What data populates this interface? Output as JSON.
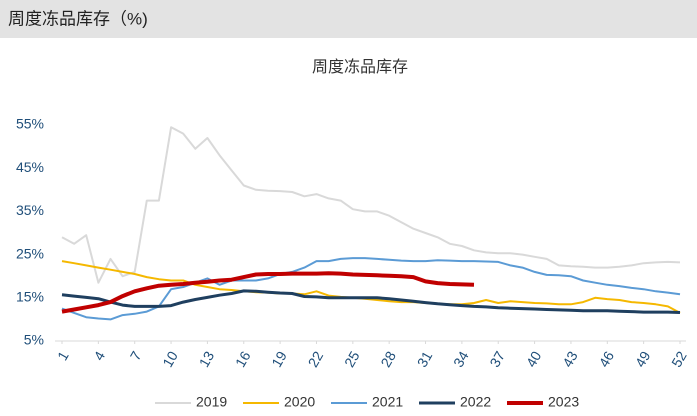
{
  "header": {
    "title": "周度冻品库存（%)"
  },
  "chart_data": {
    "type": "line",
    "title": "周度冻品库存",
    "x": [
      1,
      2,
      3,
      4,
      5,
      6,
      7,
      8,
      9,
      10,
      11,
      12,
      13,
      14,
      15,
      16,
      17,
      18,
      19,
      20,
      21,
      22,
      23,
      24,
      25,
      26,
      27,
      28,
      29,
      30,
      31,
      32,
      33,
      34,
      35,
      36,
      37,
      38,
      39,
      40,
      41,
      42,
      43,
      44,
      45,
      46,
      47,
      48,
      49,
      50,
      51,
      52
    ],
    "xlim": [
      1,
      52
    ],
    "xticks": [
      1,
      4,
      7,
      10,
      13,
      16,
      19,
      22,
      25,
      28,
      31,
      34,
      37,
      40,
      43,
      46,
      49,
      52
    ],
    "ylim": [
      5,
      55
    ],
    "yticks": [
      {
        "value": 5,
        "label": "5%"
      },
      {
        "value": 15,
        "label": "15%"
      },
      {
        "value": 25,
        "label": "25%"
      },
      {
        "value": 35,
        "label": "35%"
      },
      {
        "value": 45,
        "label": "45%"
      },
      {
        "value": 55,
        "label": "55%"
      }
    ],
    "legend": "bottom",
    "series": [
      {
        "name": "2019",
        "color": "#d9d9d9",
        "width": 2,
        "values": [
          29,
          27.5,
          29.5,
          18.5,
          24,
          20,
          21,
          37.5,
          37.5,
          54.5,
          53,
          49.5,
          52,
          48,
          44.5,
          41,
          40,
          39.8,
          39.7,
          39.5,
          38.5,
          39,
          38,
          37.5,
          35.5,
          35,
          35,
          34,
          32.5,
          31,
          30,
          29,
          27.5,
          27,
          26,
          25.5,
          25.3,
          25.3,
          25,
          24.5,
          24,
          22.5,
          22.3,
          22.2,
          22,
          22,
          22.2,
          22.5,
          23,
          23.2,
          23.3,
          23.2
        ]
      },
      {
        "name": "2020",
        "color": "#f5b800",
        "width": 2,
        "values": [
          23.5,
          23,
          22.5,
          22,
          21.5,
          21,
          20.5,
          19.8,
          19.3,
          19,
          19,
          18,
          17.5,
          17,
          16.8,
          16.5,
          16.3,
          16.2,
          16,
          16,
          15.8,
          16.5,
          15.5,
          15.2,
          15,
          14.8,
          14.5,
          14.2,
          14,
          14,
          13.8,
          13.6,
          13.5,
          13.5,
          13.8,
          14.5,
          13.8,
          14.2,
          14,
          13.8,
          13.7,
          13.5,
          13.5,
          14,
          15,
          14.7,
          14.5,
          14,
          13.8,
          13.5,
          13,
          11.5
        ]
      },
      {
        "name": "2021",
        "color": "#5b9bd5",
        "width": 2,
        "values": [
          12.5,
          11.5,
          10.5,
          10.2,
          10,
          11,
          11.3,
          11.8,
          13,
          17,
          17.5,
          18.5,
          19.5,
          18,
          19,
          19,
          19,
          19.5,
          20.5,
          21,
          22,
          23.5,
          23.5,
          24,
          24.2,
          24.2,
          24,
          23.8,
          23.6,
          23.5,
          23.5,
          23.7,
          23.6,
          23.5,
          23.5,
          23.4,
          23.3,
          22.5,
          22,
          21,
          20.3,
          20.2,
          20,
          19,
          18.5,
          18,
          17.7,
          17.3,
          17,
          16.5,
          16.2,
          15.8
        ]
      },
      {
        "name": "2022",
        "color": "#1f3f5f",
        "width": 3,
        "values": [
          15.7,
          15.4,
          15.1,
          14.8,
          14,
          13.3,
          13,
          13,
          13,
          13.2,
          14,
          14.6,
          15.1,
          15.6,
          16,
          16.6,
          16.5,
          16.3,
          16.1,
          16,
          15.3,
          15.2,
          15,
          15,
          15,
          15,
          15,
          14.8,
          14.5,
          14.2,
          13.9,
          13.6,
          13.4,
          13.2,
          13,
          12.9,
          12.7,
          12.6,
          12.5,
          12.4,
          12.3,
          12.2,
          12.1,
          12,
          12,
          12,
          11.9,
          11.8,
          11.7,
          11.7,
          11.7,
          11.6
        ]
      },
      {
        "name": "2023",
        "color": "#c00000",
        "width": 4,
        "values": [
          11.8,
          12.3,
          12.8,
          13.3,
          14,
          15.4,
          16.5,
          17.2,
          17.8,
          18,
          18.2,
          18.5,
          18.7,
          19,
          19.2,
          19.8,
          20.4,
          20.5,
          20.5,
          20.6,
          20.6,
          20.6,
          20.7,
          20.6,
          20.4,
          20.3,
          20.2,
          20.1,
          20,
          19.8,
          18.8,
          18.4,
          18.2,
          18.1,
          18,
          null,
          null,
          null,
          null,
          null,
          null,
          null,
          null,
          null,
          null,
          null,
          null,
          null,
          null,
          null,
          null,
          null
        ]
      }
    ]
  }
}
